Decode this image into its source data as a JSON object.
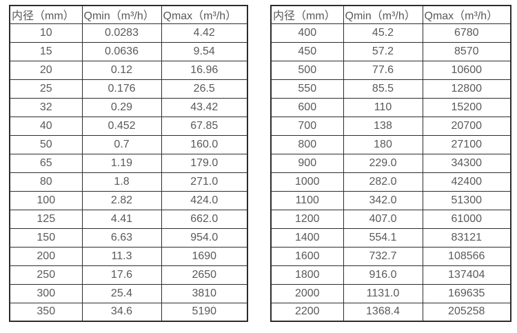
{
  "page": {
    "background": "#ffffff",
    "text_color": "#595959",
    "border_color": "#2b2b2b"
  },
  "tables": [
    {
      "name": "flow-table-small-diameters",
      "headers": [
        "内径（mm）",
        "Qmin（m³/h）",
        "Qmax（m³/h）"
      ],
      "rows": [
        [
          "10",
          "0.0283",
          "4.42"
        ],
        [
          "15",
          "0.0636",
          "9.54"
        ],
        [
          "20",
          "0.12",
          "16.96"
        ],
        [
          "25",
          "0.176",
          "26.5"
        ],
        [
          "32",
          "0.29",
          "43.42"
        ],
        [
          "40",
          "0.452",
          "67.85"
        ],
        [
          "50",
          "0.7",
          "160.0"
        ],
        [
          "65",
          "1.19",
          "179.0"
        ],
        [
          "80",
          "1.8",
          "271.0"
        ],
        [
          "100",
          "2.82",
          "424.0"
        ],
        [
          "125",
          "4.41",
          "662.0"
        ],
        [
          "150",
          "6.63",
          "954.0"
        ],
        [
          "200",
          "11.3",
          "1690"
        ],
        [
          "250",
          "17.6",
          "2650"
        ],
        [
          "300",
          "25.4",
          "3810"
        ],
        [
          "350",
          "34.6",
          "5190"
        ]
      ]
    },
    {
      "name": "flow-table-large-diameters",
      "headers": [
        "内径（mm）",
        "Qmin（m³/h）",
        "Qmax（m³/h）"
      ],
      "rows": [
        [
          "400",
          "45.2",
          "6780"
        ],
        [
          "450",
          "57.2",
          "8570"
        ],
        [
          "500",
          "77.6",
          "10600"
        ],
        [
          "550",
          "85.5",
          "12800"
        ],
        [
          "600",
          "110",
          "15200"
        ],
        [
          "700",
          "138",
          "20700"
        ],
        [
          "800",
          "180",
          "27100"
        ],
        [
          "900",
          "229.0",
          "34300"
        ],
        [
          "1000",
          "282.0",
          "42400"
        ],
        [
          "1100",
          "342.0",
          "51300"
        ],
        [
          "1200",
          "407.0",
          "61000"
        ],
        [
          "1400",
          "554.1",
          "83121"
        ],
        [
          "1600",
          "732.7",
          "108566"
        ],
        [
          "1800",
          "916.0",
          "137404"
        ],
        [
          "2000",
          "1131.0",
          "169635"
        ],
        [
          "2200",
          "1368.4",
          "205258"
        ]
      ]
    }
  ]
}
